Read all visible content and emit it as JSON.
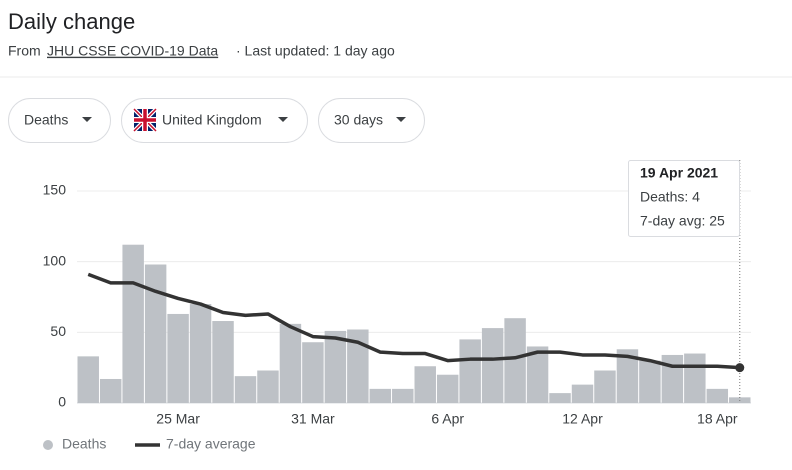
{
  "header": {
    "title": "Daily change",
    "source_prefix": "From",
    "source_link": "JHU CSSE COVID-19 Data",
    "updated": "· Last updated: 1 day ago"
  },
  "filters": [
    "Deaths",
    "United Kingdom",
    "30 days"
  ],
  "tooltip": {
    "date": "19 Apr 2021",
    "lines": [
      "Deaths: 4",
      "7-day avg: 25"
    ]
  },
  "chart_data": {
    "type": "bar",
    "categories": [
      null,
      null,
      null,
      null,
      "25 Mar",
      null,
      null,
      null,
      null,
      null,
      "31 Mar",
      null,
      null,
      null,
      null,
      null,
      "6 Apr",
      null,
      null,
      null,
      null,
      null,
      "12 Apr",
      null,
      null,
      null,
      null,
      null,
      "18 Apr",
      null
    ],
    "series": [
      {
        "name": "Deaths",
        "type": "bar",
        "color": "#bdc1c6",
        "values": [
          33,
          17,
          112,
          98,
          63,
          70,
          58,
          19,
          23,
          56,
          43,
          51,
          52,
          10,
          10,
          26,
          20,
          45,
          53,
          60,
          40,
          7,
          13,
          23,
          38,
          30,
          34,
          35,
          10,
          4
        ]
      },
      {
        "name": "7-day average",
        "type": "line",
        "color": "#333333",
        "values": [
          91,
          85,
          85,
          79,
          74,
          70,
          64,
          62,
          63,
          54,
          47,
          46,
          43,
          36,
          35,
          35,
          30,
          31,
          31,
          32,
          36,
          36,
          34,
          34,
          33,
          30,
          26,
          26,
          26,
          25
        ]
      }
    ],
    "ylim": [
      0,
      150
    ],
    "yticks": [
      0,
      50,
      100,
      150
    ],
    "grid": true
  }
}
